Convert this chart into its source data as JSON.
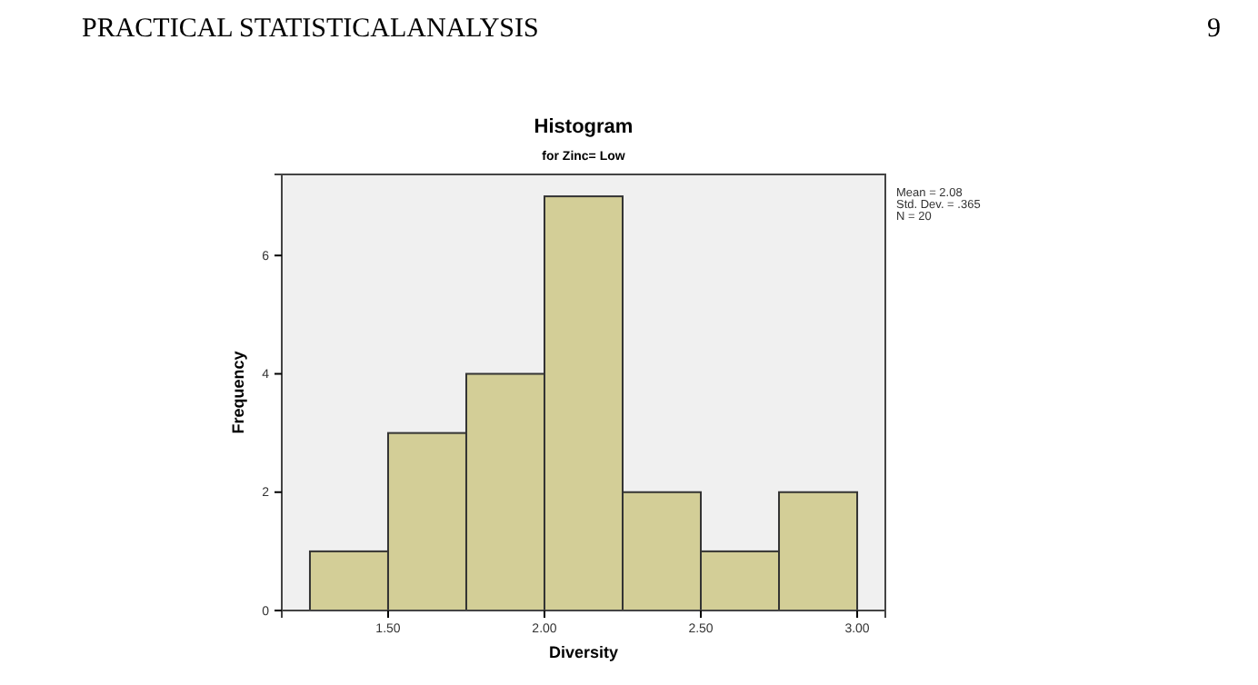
{
  "chart_data": {
    "type": "histogram",
    "title": "Histogram",
    "subtitle": "for Zinc= Low",
    "xlabel": "Diversity",
    "ylabel": "Frequency",
    "bins": [
      1.25,
      1.5,
      1.75,
      2.0,
      2.25,
      2.5,
      2.75,
      3.0
    ],
    "values": [
      1,
      3,
      4,
      7,
      2,
      1,
      2
    ],
    "color": "#d3ce97",
    "xlim": [
      1.16,
      3.09
    ],
    "xticks": [
      {
        "value": 1.5,
        "label": "1.50"
      },
      {
        "value": 2.0,
        "label": "2.00"
      },
      {
        "value": 2.5,
        "label": "2.50"
      },
      {
        "value": 3.0,
        "label": "3.00"
      }
    ],
    "ylim": [
      0,
      7.37
    ],
    "yticks": [
      0,
      2,
      4,
      6
    ],
    "grid": false,
    "annotations": [
      "PRACTICAL STATISTICALANALYSIS",
      "9",
      "Mean = 2.08\nStd. Dev. = .365\nN = 20"
    ]
  }
}
